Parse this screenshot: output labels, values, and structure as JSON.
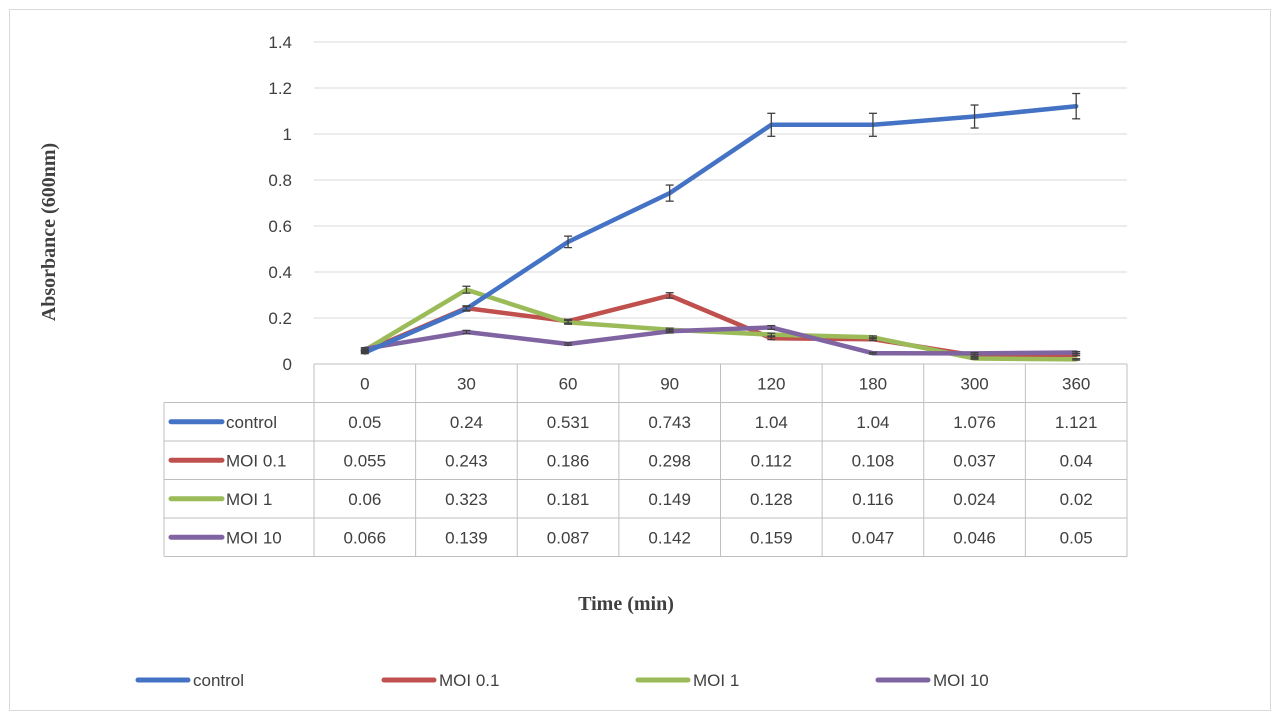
{
  "chart_data": {
    "type": "line",
    "title": "",
    "xlabel": "Time (min)",
    "ylabel": "Absorbance (600nm)",
    "ylim": [
      0,
      1.4
    ],
    "y_ticks": [
      "0",
      "0.2",
      "0.4",
      "0.6",
      "0.8",
      "1",
      "1.2",
      "1.4"
    ],
    "grid": true,
    "legend_position": "bottom",
    "data_table": true,
    "categories": [
      "0",
      "30",
      "60",
      "90",
      "120",
      "180",
      "300",
      "360"
    ],
    "series": [
      {
        "name": "control",
        "color": "#4472c4",
        "values": [
          0.05,
          0.24,
          0.531,
          0.743,
          1.04,
          1.04,
          1.076,
          1.121
        ],
        "labels": [
          "0.05",
          "0.24",
          "0.531",
          "0.743",
          "1.04",
          "1.04",
          "1.076",
          "1.121"
        ],
        "error": [
          0.005,
          0.01,
          0.025,
          0.035,
          0.05,
          0.05,
          0.05,
          0.055
        ]
      },
      {
        "name": "MOI 0.1",
        "color": "#c0504d",
        "values": [
          0.055,
          0.243,
          0.186,
          0.298,
          0.112,
          0.108,
          0.037,
          0.04
        ],
        "labels": [
          "0.055",
          "0.243",
          "0.186",
          "0.298",
          "0.112",
          "0.108",
          "0.037",
          "0.04"
        ],
        "error": [
          0.005,
          0.01,
          0.008,
          0.012,
          0.006,
          0.006,
          0.004,
          0.004
        ]
      },
      {
        "name": "MOI 1",
        "color": "#9bbb59",
        "values": [
          0.06,
          0.323,
          0.181,
          0.149,
          0.128,
          0.116,
          0.024,
          0.02
        ],
        "labels": [
          "0.06",
          "0.323",
          "0.181",
          "0.149",
          "0.128",
          "0.116",
          "0.024",
          "0.02"
        ],
        "error": [
          0.005,
          0.015,
          0.008,
          0.007,
          0.006,
          0.006,
          0.003,
          0.003
        ]
      },
      {
        "name": "MOI 10",
        "color": "#8064a2",
        "values": [
          0.066,
          0.139,
          0.087,
          0.142,
          0.159,
          0.047,
          0.046,
          0.05
        ],
        "labels": [
          "0.066",
          "0.139",
          "0.087",
          "0.142",
          "0.159",
          "0.047",
          "0.046",
          "0.05"
        ],
        "error": [
          0.005,
          0.007,
          0.005,
          0.007,
          0.008,
          0.004,
          0.004,
          0.004
        ]
      }
    ]
  }
}
